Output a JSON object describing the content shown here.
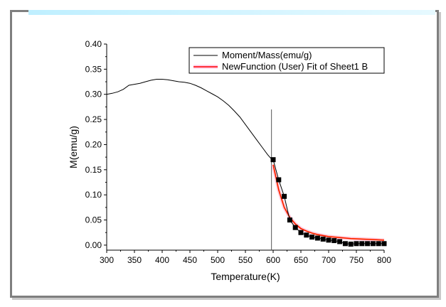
{
  "chart_data": {
    "type": "line",
    "xlabel": "Temperature(K)",
    "ylabel": "M(emu/g)",
    "xlim": [
      300,
      800
    ],
    "ylim": [
      -0.01,
      0.4
    ],
    "x_ticks": [
      "300",
      "350",
      "400",
      "450",
      "500",
      "550",
      "600",
      "650",
      "700",
      "750",
      "800"
    ],
    "y_ticks": [
      "0.00",
      "0.05",
      "0.10",
      "0.15",
      "0.20",
      "0.25",
      "0.30",
      "0.35",
      "0.40"
    ],
    "grid": false,
    "legend_position": "top-right",
    "vertical_marker_x": 597,
    "series": [
      {
        "name": "Moment/Mass(emu/g)",
        "color": "#000000",
        "style": "line",
        "x": [
          300,
          310,
          320,
          330,
          340,
          350,
          360,
          370,
          380,
          390,
          400,
          410,
          420,
          430,
          440,
          450,
          460,
          470,
          480,
          490,
          500,
          510,
          520,
          530,
          540,
          550,
          560,
          570,
          580,
          590,
          598
        ],
        "y": [
          0.3,
          0.302,
          0.305,
          0.31,
          0.318,
          0.32,
          0.322,
          0.325,
          0.328,
          0.33,
          0.33,
          0.329,
          0.327,
          0.325,
          0.324,
          0.322,
          0.318,
          0.313,
          0.307,
          0.301,
          0.295,
          0.287,
          0.278,
          0.267,
          0.255,
          0.24,
          0.225,
          0.21,
          0.195,
          0.18,
          0.17
        ]
      },
      {
        "name": "NewFunction (User) Fit of Sheet1 B",
        "color": "#ff0000",
        "style": "line",
        "x": [
          600,
          610,
          620,
          630,
          640,
          650,
          660,
          670,
          680,
          690,
          700,
          720,
          740,
          760,
          780,
          800
        ],
        "y": [
          0.16,
          0.11,
          0.075,
          0.055,
          0.042,
          0.033,
          0.028,
          0.024,
          0.021,
          0.019,
          0.017,
          0.015,
          0.013,
          0.012,
          0.011,
          0.01
        ]
      },
      {
        "name": "",
        "color": "#000000",
        "style": "markers",
        "x": [
          600,
          610,
          620,
          630,
          640,
          650,
          660,
          670,
          680,
          690,
          700,
          710,
          720,
          730,
          740,
          750,
          760,
          770,
          780,
          790,
          800
        ],
        "y": [
          0.17,
          0.13,
          0.097,
          0.05,
          0.035,
          0.025,
          0.02,
          0.016,
          0.014,
          0.012,
          0.01,
          0.009,
          0.007,
          0.003,
          0.002,
          0.003,
          0.003,
          0.003,
          0.003,
          0.003,
          0.003
        ]
      }
    ]
  }
}
